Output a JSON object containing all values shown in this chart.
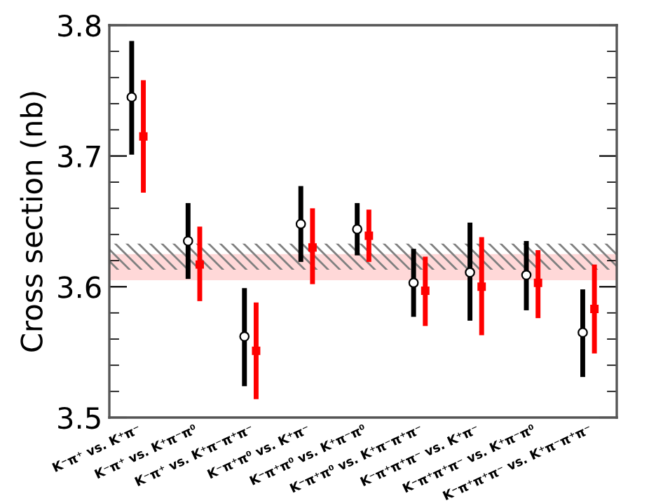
{
  "chart_data": {
    "type": "scatter",
    "ylabel": "Cross section (nb)",
    "categories": [
      "K⁻π⁺ vs. K⁺π⁻",
      "K⁻π⁺ vs. K⁺π⁻π⁰",
      "K⁻π⁺ vs. K⁺π⁻π⁺π⁻",
      "K⁻π⁺π⁰ vs. K⁺π⁻",
      "K⁻π⁺π⁰ vs. K⁺π⁻π⁰",
      "K⁻π⁺π⁰ vs. K⁺π⁻π⁺π⁻",
      "K⁻π⁺π⁺π⁻ vs. K⁺π⁻",
      "K⁻π⁺π⁺π⁻ vs. K⁺π⁻π⁰",
      "K⁻π⁺π⁺π⁻ vs. K⁺π⁻π⁺π⁻"
    ],
    "series": [
      {
        "color": "#000000",
        "marker": "circle",
        "values": [
          3.745,
          3.635,
          3.562,
          3.648,
          3.644,
          3.603,
          3.611,
          3.609,
          3.565
        ],
        "errors": [
          [
            3.701,
            3.788
          ],
          [
            3.606,
            3.664
          ],
          [
            3.524,
            3.599
          ],
          [
            3.619,
            3.677
          ],
          [
            3.624,
            3.664
          ],
          [
            3.577,
            3.629
          ],
          [
            3.574,
            3.649
          ],
          [
            3.582,
            3.635
          ],
          [
            3.531,
            3.598
          ]
        ]
      },
      {
        "color": "#ff0000",
        "marker": "square",
        "values": [
          3.715,
          3.617,
          3.551,
          3.63,
          3.639,
          3.597,
          3.6,
          3.603,
          3.583
        ],
        "errors": [
          [
            3.672,
            3.758
          ],
          [
            3.589,
            3.646
          ],
          [
            3.514,
            3.588
          ],
          [
            3.602,
            3.66
          ],
          [
            3.619,
            3.659
          ],
          [
            3.57,
            3.623
          ],
          [
            3.563,
            3.638
          ],
          [
            3.576,
            3.628
          ],
          [
            3.549,
            3.617
          ]
        ]
      }
    ],
    "bands": [
      {
        "axis": "y",
        "from": 3.613,
        "to": 3.633,
        "color": "#808080",
        "label": null
      },
      {
        "axis": "y",
        "from": 3.605,
        "to": 3.625,
        "color": "#ffc8c8",
        "label": null
      }
    ],
    "ylim": [
      3.5,
      3.8
    ],
    "yticks": [
      3.5,
      {
        "value": 3.52,
        "label": null
      },
      {
        "value": 3.54,
        "label": null
      },
      {
        "value": 3.56,
        "label": null
      },
      {
        "value": 3.58,
        "label": null
      },
      3.6,
      {
        "value": 3.62,
        "label": null
      },
      {
        "value": 3.64,
        "label": null
      },
      {
        "value": 3.66,
        "label": null
      },
      {
        "value": 3.68,
        "label": null
      },
      3.7,
      {
        "value": 3.72,
        "label": null
      },
      {
        "value": 3.74,
        "label": null
      },
      {
        "value": 3.76,
        "label": null
      },
      {
        "value": 3.78,
        "label": null
      },
      3.8
    ],
    "grid": false,
    "legend": false
  }
}
